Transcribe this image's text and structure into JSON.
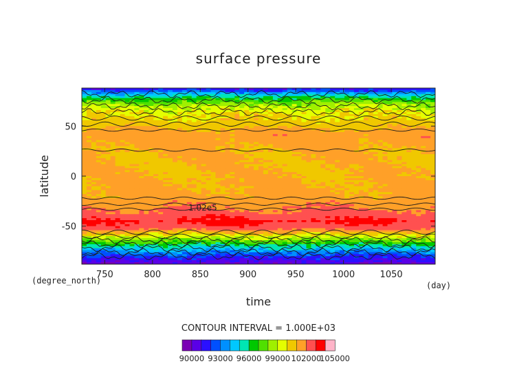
{
  "chart_data": {
    "type": "heatmap",
    "title": "surface pressure",
    "xlabel": "time",
    "ylabel": "latitude",
    "x_unit": "(day)",
    "y_unit": "(degree_north)",
    "xlim": [
      726,
      1096
    ],
    "ylim": [
      -88,
      88
    ],
    "x_ticks": [
      750,
      800,
      850,
      900,
      950,
      1000,
      1050
    ],
    "y_ticks": [
      50,
      0,
      -50
    ],
    "contour_label": "1.02e5",
    "contour_interval_text": "CONTOUR INTERVAL = 1.000E+03",
    "colorbar": {
      "labels": [
        "90000",
        "93000",
        "96000",
        "99000",
        "102000",
        "105000"
      ],
      "colors": [
        "#7a00b4",
        "#5a00e6",
        "#2a10ff",
        "#0050ff",
        "#0090ff",
        "#00c8ff",
        "#00e6b4",
        "#00c800",
        "#50e000",
        "#a0f000",
        "#e4ff00",
        "#f0c800",
        "#ffa028",
        "#ff5050",
        "#ff0000",
        "#ffb4c8"
      ]
    },
    "zonal_profile": [
      {
        "lat": 88,
        "value": 91000
      },
      {
        "lat": 80,
        "value": 95500
      },
      {
        "lat": 72,
        "value": 98500
      },
      {
        "lat": 62,
        "value": 100000
      },
      {
        "lat": 52,
        "value": 100500
      },
      {
        "lat": 42,
        "value": 101600
      },
      {
        "lat": 30,
        "value": 101200
      },
      {
        "lat": 18,
        "value": 101000
      },
      {
        "lat": 0,
        "value": 101000
      },
      {
        "lat": -20,
        "value": 101300
      },
      {
        "lat": -30,
        "value": 101800
      },
      {
        "lat": -38,
        "value": 102400
      },
      {
        "lat": -45,
        "value": 103200
      },
      {
        "lat": -52,
        "value": 102500
      },
      {
        "lat": -60,
        "value": 99500
      },
      {
        "lat": -70,
        "value": 95500
      },
      {
        "lat": -80,
        "value": 92000
      },
      {
        "lat": -88,
        "value": 90000
      }
    ]
  }
}
